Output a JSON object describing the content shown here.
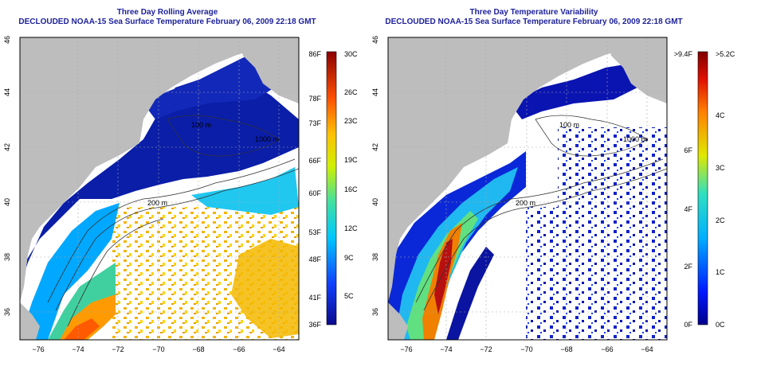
{
  "left_panel": {
    "title1": "Three Day Rolling Average",
    "title2": "DECLOUDED NOAA-15 Sea Surface Temperature February 06, 2009 22:18 GMT",
    "colorbar_left": [
      "86F",
      "78F",
      "73F",
      "66F",
      "60F",
      "53F",
      "48F",
      "41F",
      "36F"
    ],
    "colorbar_right": [
      "30C",
      "26C",
      "23C",
      "19C",
      "16C",
      "12C",
      "9C",
      "5C"
    ]
  },
  "right_panel": {
    "title1": "Three Day Temperature Variability",
    "title2": "DECLOUDED NOAA-15 Sea Surface Temperature February 06, 2009 22:18 GMT",
    "colorbar_left": [
      ">9.4F",
      "6F",
      "4F",
      "2F",
      "0F"
    ],
    "colorbar_right": [
      ">5.2C",
      "4C",
      "3C",
      "2C",
      "1C",
      "0C"
    ]
  },
  "axes": {
    "lon_ticks": [
      "−76",
      "−74",
      "−72",
      "−70",
      "−68",
      "−66",
      "−64"
    ],
    "lat_ticks": [
      "36",
      "38",
      "40",
      "42",
      "44",
      "46"
    ]
  },
  "contours": {
    "label_100": "100 m",
    "label_200": "200 m",
    "label_1000": "1000 m"
  },
  "colors": {
    "title": "#1b1f9a",
    "land": "#bdbdbd",
    "deep_blue": "#0a1ea8",
    "orange": "#f0a000",
    "red": "#c81010"
  }
}
